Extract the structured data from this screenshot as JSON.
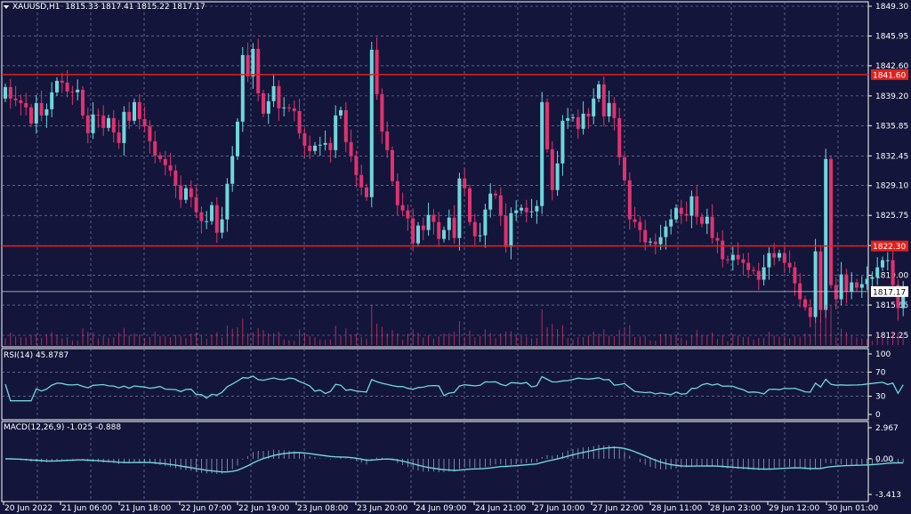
{
  "main": {
    "symbol": "XAUUSD,H1",
    "ohlc": "1815.33 1817.41 1815.22 1817.17",
    "price_ticks": [
      "1849.30",
      "1845.95",
      "1842.60",
      "1839.20",
      "1835.85",
      "1832.45",
      "1829.10",
      "1825.75",
      "1822.35",
      "1819.00",
      "1815.65",
      "1812.25"
    ],
    "current_price": "1817.17",
    "hline_upper_label": "1841.60",
    "hline_lower_label": "1822.30",
    "colors": {
      "bg": "#13163a",
      "bull": "#6fd6dc",
      "bear": "#e0326e",
      "grid": "#8a8fb8",
      "level": "#e3201b"
    }
  },
  "rsi": {
    "label": "RSI(14) 45.8787",
    "ticks": [
      "100",
      "70",
      "30",
      "0"
    ],
    "color": "#6fd6dc"
  },
  "macd": {
    "label": "MACD(12,26,9) -1.025 -0.888",
    "ticks": [
      "2.967",
      "0.00",
      "-3.413"
    ],
    "color": "#6fd6dc"
  },
  "time_axis": [
    "20 Jun 2022",
    "21 Jun 06:00",
    "21 Jun 18:00",
    "22 Jun 07:00",
    "22 Jun 19:00",
    "23 Jun 08:00",
    "23 Jun 20:00",
    "24 Jun 09:00",
    "24 Jun 21:00",
    "27 Jun 10:00",
    "27 Jun 22:00",
    "28 Jun 11:00",
    "28 Jun 23:00",
    "29 Jun 12:00",
    "30 Jun 01:00"
  ]
}
